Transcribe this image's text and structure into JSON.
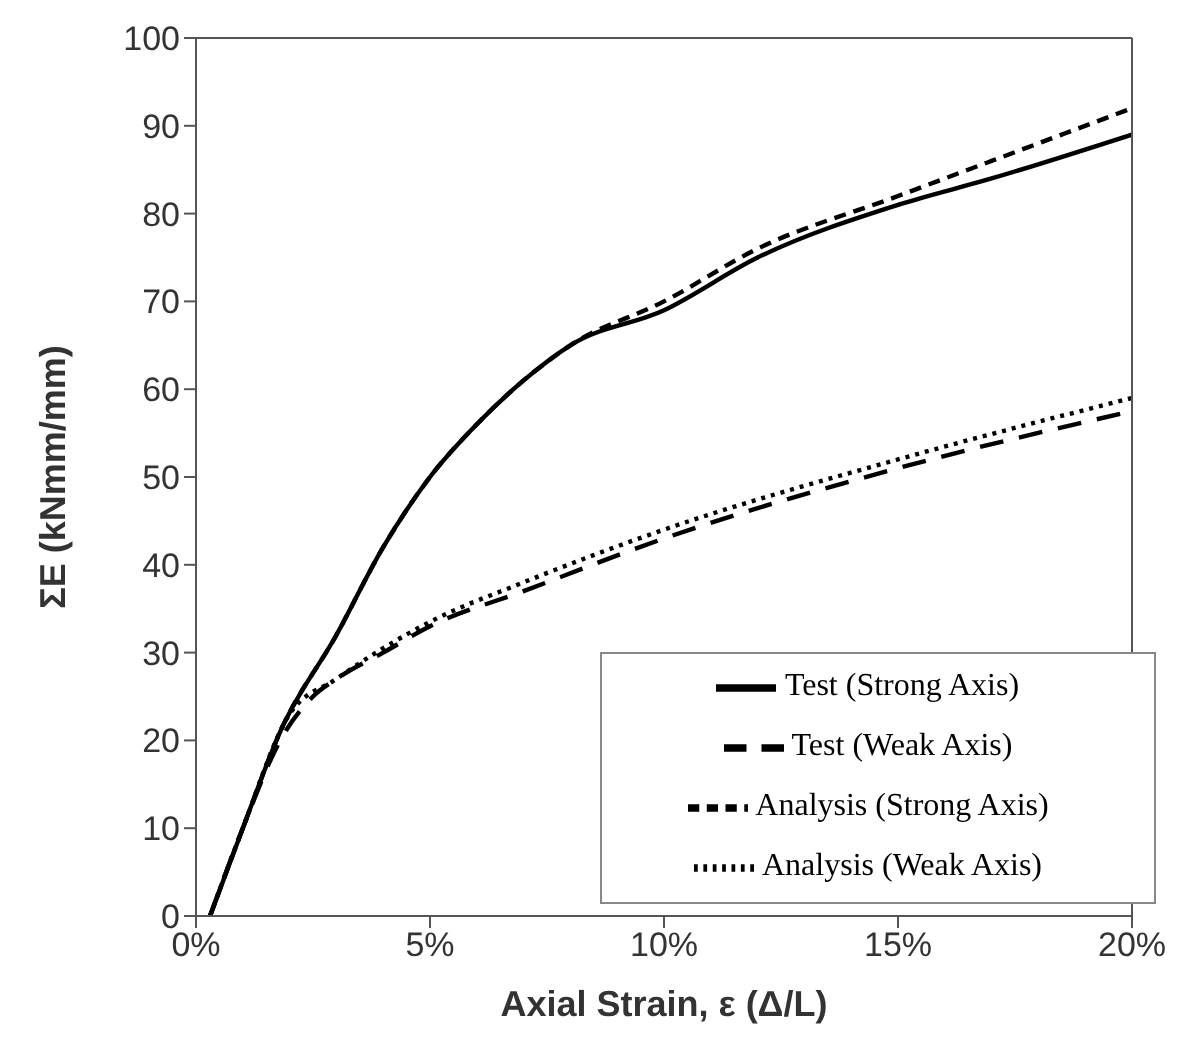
{
  "chart_data": {
    "type": "line",
    "xlabel": "Axial Strain, ε (Δ/L)",
    "ylabel": "ΣE (kNmm/mm)",
    "xlim": [
      0,
      20
    ],
    "xticks": [
      {
        "value": 0,
        "label": "0%"
      },
      {
        "value": 5,
        "label": "5%"
      },
      {
        "value": 10,
        "label": "10%"
      },
      {
        "value": 15,
        "label": "15%"
      },
      {
        "value": 20,
        "label": "20%"
      }
    ],
    "ylim": [
      0,
      100
    ],
    "yticks": [
      0,
      10,
      20,
      30,
      40,
      50,
      60,
      70,
      80,
      90,
      100
    ],
    "grid": false,
    "legend": "bottom right",
    "marker": "none",
    "series": [
      {
        "name": "Test (Strong Axis)",
        "color": "#000000",
        "line_style": "solid",
        "x": [
          0.3,
          1,
          1.8,
          3,
          4,
          5,
          6,
          7,
          8,
          10,
          12,
          15,
          17,
          20
        ],
        "values": [
          0,
          10,
          21,
          32,
          42,
          50,
          56,
          61,
          65,
          69,
          75,
          81,
          84,
          89
        ]
      },
      {
        "name": "Test (Weak Axis)",
        "color": "#000000",
        "line_style": "dashed",
        "x": [
          0.3,
          1,
          1.8,
          2.5,
          3,
          4,
          5,
          7,
          10,
          15,
          20
        ],
        "values": [
          0,
          10,
          20,
          25,
          27,
          30,
          33,
          37,
          43,
          51,
          57.5
        ]
      },
      {
        "name": "Analysis (Strong Axis)",
        "color": "#000000",
        "line_style": "dashed",
        "x": [
          0.3,
          1,
          1.8,
          3,
          4,
          5,
          6,
          7,
          8,
          10,
          12,
          15,
          17,
          20
        ],
        "values": [
          0,
          10,
          21,
          32,
          42,
          50,
          56,
          61,
          65,
          70,
          76,
          82,
          86,
          92
        ]
      },
      {
        "name": "Analysis (Weak Axis)",
        "color": "#000000",
        "line_style": "dotted",
        "x": [
          0.3,
          1,
          2,
          3,
          4,
          5,
          7,
          10,
          15,
          20
        ],
        "values": [
          0,
          10,
          23,
          27,
          30.5,
          33.5,
          38,
          44,
          52,
          59
        ]
      }
    ]
  }
}
